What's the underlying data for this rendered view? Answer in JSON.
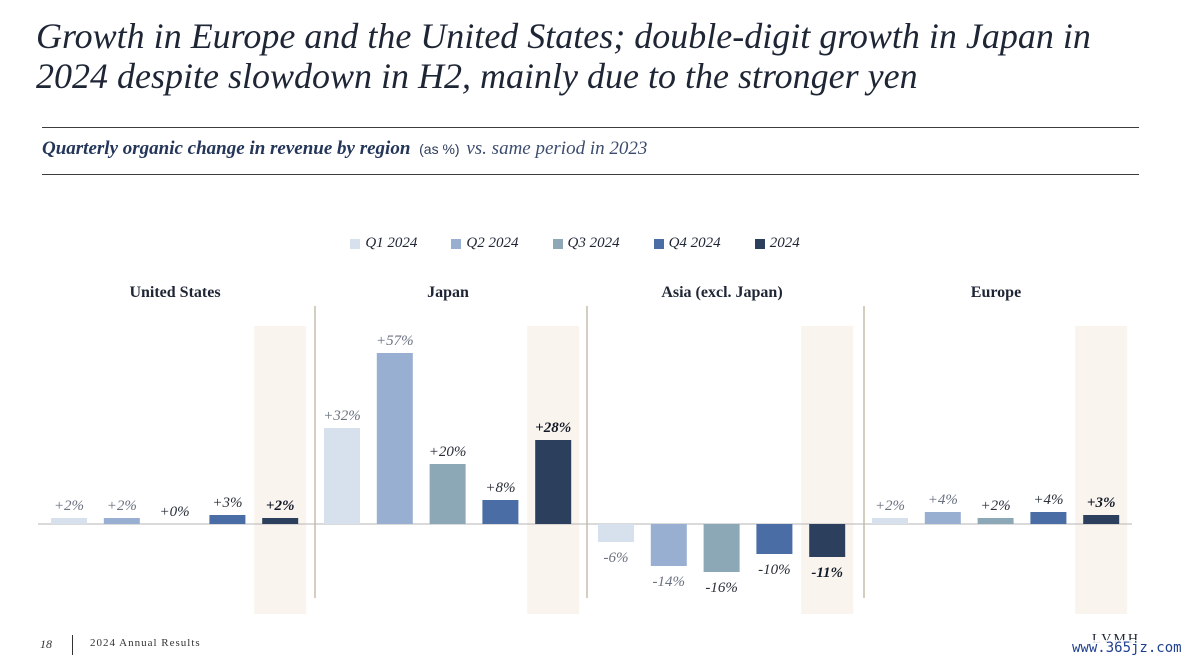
{
  "slide": {
    "title": "Growth in Europe and the United States; double-digit growth in Japan in 2024 despite slowdown in H2, mainly due to the stronger yen",
    "subtitle_main": "Quarterly organic change in revenue by region",
    "subtitle_unit": "(as %)",
    "subtitle_tail": "vs. same period in 2023"
  },
  "footer": {
    "page": "18",
    "text": "2024 Annual Results",
    "logo": "LVMH",
    "watermark": "www.365jz.com"
  },
  "legend": [
    {
      "label": "Q1 2024",
      "color": "#d7e1ee"
    },
    {
      "label": "Q2 2024",
      "color": "#98afd1"
    },
    {
      "label": "Q3 2024",
      "color": "#8ca7b6"
    },
    {
      "label": "Q4 2024",
      "color": "#4a6da6"
    },
    {
      "label": "2024",
      "color": "#2c3f5c"
    }
  ],
  "chart_data": {
    "type": "bar",
    "unit": "%",
    "series": [
      {
        "name": "Q1 2024",
        "color": "#d7e1ee"
      },
      {
        "name": "Q2 2024",
        "color": "#98afd1"
      },
      {
        "name": "Q3 2024",
        "color": "#8ca7b6"
      },
      {
        "name": "Q4 2024",
        "color": "#4a6da6"
      },
      {
        "name": "2024",
        "color": "#2c3f5c"
      }
    ],
    "groups": [
      {
        "name": "United States",
        "values": [
          2,
          2,
          0,
          3,
          2
        ],
        "labels": [
          "+2%",
          "+2%",
          "+0%",
          "+3%",
          "+2%"
        ]
      },
      {
        "name": "Japan",
        "values": [
          32,
          57,
          20,
          8,
          28
        ],
        "labels": [
          "+32%",
          "+57%",
          "+20%",
          "+8%",
          "+28%"
        ]
      },
      {
        "name": "Asia (excl. Japan)",
        "values": [
          -6,
          -14,
          -16,
          -10,
          -11
        ],
        "labels": [
          "-6%",
          "-14%",
          "-16%",
          "-10%",
          "-11%"
        ]
      },
      {
        "name": "Europe",
        "values": [
          2,
          4,
          2,
          4,
          3
        ],
        "labels": [
          "+2%",
          "+4%",
          "+2%",
          "+4%",
          "+3%"
        ]
      }
    ],
    "highlight_series": "2024",
    "highlight_color": "#f9f4ee"
  }
}
